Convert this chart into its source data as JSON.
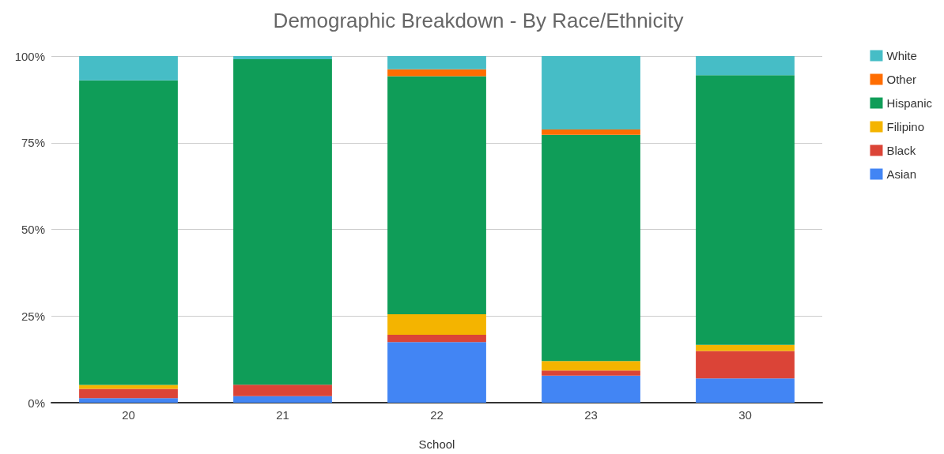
{
  "chart_data": {
    "type": "bar",
    "title": "Demographic Breakdown - By Race/Ethnicity",
    "xlabel": "School",
    "categories": [
      "20",
      "21",
      "22",
      "23",
      "30"
    ],
    "stacked": true,
    "series": [
      {
        "name": "Asian",
        "color": "#4285f4",
        "values": [
          1.3,
          1.9,
          17.5,
          7.8,
          7.0
        ]
      },
      {
        "name": "Black",
        "color": "#db4437",
        "values": [
          2.7,
          3.3,
          2.1,
          1.5,
          7.9
        ]
      },
      {
        "name": "Filipino",
        "color": "#f4b400",
        "values": [
          1.1,
          0,
          5.9,
          2.7,
          1.8
        ]
      },
      {
        "name": "Hispanic",
        "color": "#0f9d58",
        "values": [
          87.9,
          93.9,
          68.7,
          65.3,
          77.8
        ]
      },
      {
        "name": "Other",
        "color": "#ff6d01",
        "values": [
          0,
          0,
          2.0,
          1.5,
          0
        ]
      },
      {
        "name": "White",
        "color": "#46bdc6",
        "values": [
          7.0,
          0.9,
          3.8,
          21.2,
          5.5
        ]
      }
    ],
    "ylim": [
      0,
      100
    ],
    "yticks": [
      {
        "value": 0,
        "label": "0%"
      },
      {
        "value": 25,
        "label": "25%"
      },
      {
        "value": 50,
        "label": "50%"
      },
      {
        "value": 75,
        "label": "75%"
      },
      {
        "value": 100,
        "label": "100%"
      }
    ],
    "grid": "y",
    "legend": "top right"
  }
}
